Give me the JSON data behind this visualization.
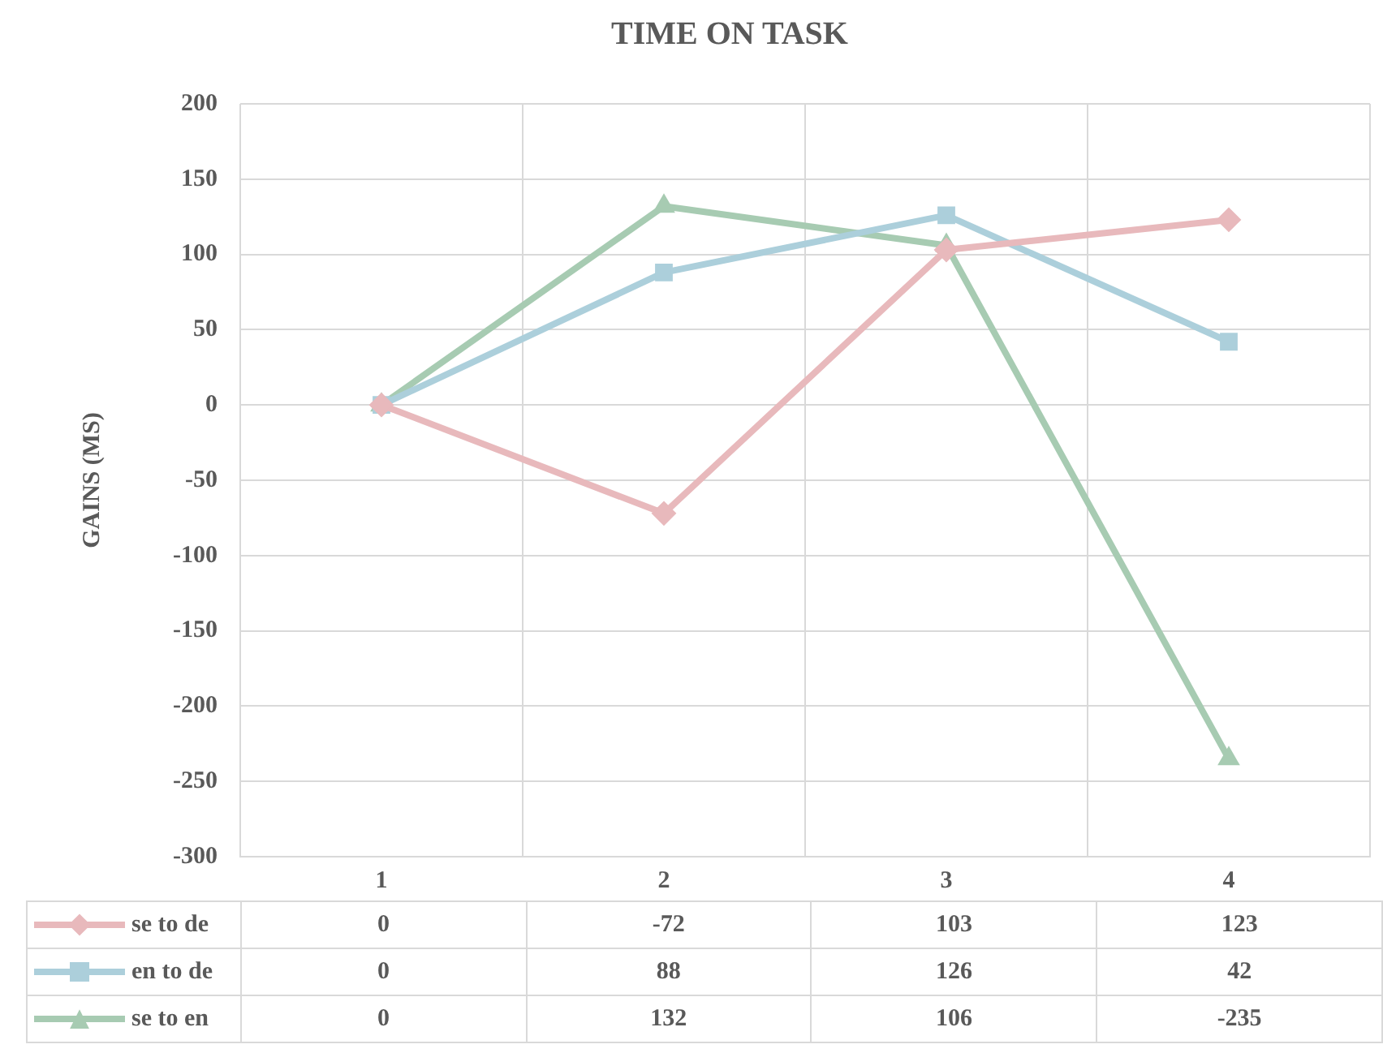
{
  "chart_data": {
    "type": "line",
    "title": "TIME ON TASK",
    "ylabel": "GAINS (MS)",
    "categories": [
      "1",
      "2",
      "3",
      "4"
    ],
    "series": [
      {
        "name": "se to de",
        "color": "#e8b9bc",
        "marker": "diamond",
        "values": [
          0,
          -72,
          103,
          123
        ]
      },
      {
        "name": "en to de",
        "color": "#accfdb",
        "marker": "square",
        "values": [
          0,
          88,
          126,
          42
        ]
      },
      {
        "name": "se to en",
        "color": "#a7cbb2",
        "marker": "triangle",
        "values": [
          0,
          132,
          106,
          -235
        ]
      }
    ],
    "ylim": [
      -300,
      200
    ],
    "yticks": [
      -300,
      -250,
      -200,
      -150,
      -100,
      -50,
      0,
      50,
      100,
      150,
      200
    ],
    "grid": true,
    "legend": "bottom",
    "data_labels": true,
    "line_style": "solid"
  }
}
